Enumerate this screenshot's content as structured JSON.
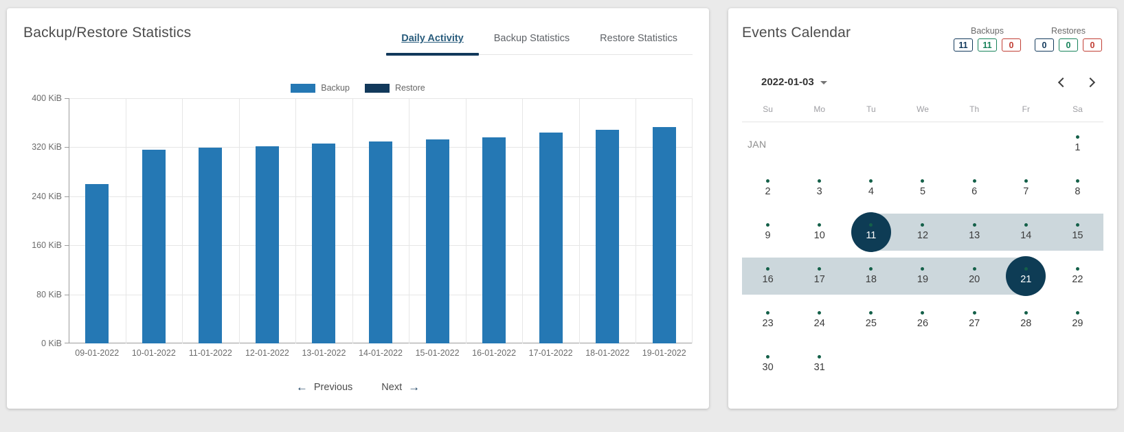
{
  "left_card": {
    "title": "Backup/Restore Statistics",
    "tabs": [
      {
        "label": "Daily Activity",
        "active": true
      },
      {
        "label": "Backup Statistics",
        "active": false
      },
      {
        "label": "Restore Statistics",
        "active": false
      }
    ],
    "legend": [
      {
        "label": "Backup",
        "color": "#2578b4"
      },
      {
        "label": "Restore",
        "color": "#12395b"
      }
    ],
    "pagination": {
      "prev_icon": "←",
      "previous_label": "Previous",
      "next_label": "Next",
      "next_icon": "→"
    }
  },
  "chart_data": {
    "type": "bar",
    "title": "Daily Activity",
    "categories": [
      "09-01-2022",
      "10-01-2022",
      "11-01-2022",
      "12-01-2022",
      "13-01-2022",
      "14-01-2022",
      "15-01-2022",
      "16-01-2022",
      "17-01-2022",
      "18-01-2022",
      "19-01-2022"
    ],
    "series": [
      {
        "name": "Backup",
        "color": "#2578b4",
        "values": [
          260,
          316,
          319,
          322,
          326,
          329,
          333,
          336,
          344,
          349,
          353
        ]
      },
      {
        "name": "Restore",
        "color": "#12395b",
        "values": [
          0,
          0,
          0,
          0,
          0,
          0,
          0,
          0,
          0,
          0,
          0
        ]
      }
    ],
    "unit": "KiB",
    "ylim": [
      0,
      400
    ],
    "ytick_step": 80,
    "yticks_top_to_bottom": [
      "400 KiB",
      "320 KiB",
      "240 KiB",
      "160 KiB",
      "80 KiB",
      "0 KiB"
    ],
    "grid": true,
    "legend_position": "top-center"
  },
  "right_card": {
    "title": "Events Calendar",
    "counters": [
      {
        "label": "Backups",
        "badges": [
          {
            "value": "11",
            "color": "#12395b"
          },
          {
            "value": "11",
            "color": "#17825a"
          },
          {
            "value": "0",
            "color": "#c03d33"
          }
        ]
      },
      {
        "label": "Restores",
        "badges": [
          {
            "value": "0",
            "color": "#12395b"
          },
          {
            "value": "0",
            "color": "#17825a"
          },
          {
            "value": "0",
            "color": "#c03d33"
          }
        ]
      }
    ],
    "month_selector": {
      "value": "2022-01-03"
    },
    "weekdays": [
      "Su",
      "Mo",
      "Tu",
      "We",
      "Th",
      "Fr",
      "Sa"
    ],
    "calendar": {
      "month_label": "JAN",
      "selected_days": [
        11,
        21
      ],
      "range": {
        "start_day": 11,
        "end_day": 21
      },
      "weeks": [
        {
          "show_month_label": true,
          "days": [
            {
              "col": 6,
              "day": 1,
              "dot": true
            }
          ]
        },
        {
          "days": [
            {
              "col": 0,
              "day": 2,
              "dot": true
            },
            {
              "col": 1,
              "day": 3,
              "dot": true
            },
            {
              "col": 2,
              "day": 4,
              "dot": true
            },
            {
              "col": 3,
              "day": 5,
              "dot": true
            },
            {
              "col": 4,
              "day": 6,
              "dot": true
            },
            {
              "col": 5,
              "day": 7,
              "dot": true
            },
            {
              "col": 6,
              "day": 8,
              "dot": true
            }
          ]
        },
        {
          "band": {
            "from_col": 2.5,
            "to_col": 7
          },
          "days": [
            {
              "col": 0,
              "day": 9,
              "dot": true
            },
            {
              "col": 1,
              "day": 10,
              "dot": true
            },
            {
              "col": 2,
              "day": 11,
              "dot": true,
              "selected": true
            },
            {
              "col": 3,
              "day": 12,
              "dot": true
            },
            {
              "col": 4,
              "day": 13,
              "dot": true
            },
            {
              "col": 5,
              "day": 14,
              "dot": true
            },
            {
              "col": 6,
              "day": 15,
              "dot": true
            }
          ]
        },
        {
          "band": {
            "from_col": 0,
            "to_col": 5.5
          },
          "days": [
            {
              "col": 0,
              "day": 16,
              "dot": true
            },
            {
              "col": 1,
              "day": 17,
              "dot": true
            },
            {
              "col": 2,
              "day": 18,
              "dot": true
            },
            {
              "col": 3,
              "day": 19,
              "dot": true
            },
            {
              "col": 4,
              "day": 20,
              "dot": true
            },
            {
              "col": 5,
              "day": 21,
              "dot": true,
              "selected": true
            },
            {
              "col": 6,
              "day": 22,
              "dot": true
            }
          ]
        },
        {
          "days": [
            {
              "col": 0,
              "day": 23,
              "dot": true
            },
            {
              "col": 1,
              "day": 24,
              "dot": true
            },
            {
              "col": 2,
              "day": 25,
              "dot": true
            },
            {
              "col": 3,
              "day": 26,
              "dot": true
            },
            {
              "col": 4,
              "day": 27,
              "dot": true
            },
            {
              "col": 5,
              "day": 28,
              "dot": true
            },
            {
              "col": 6,
              "day": 29,
              "dot": true
            }
          ]
        },
        {
          "days": [
            {
              "col": 0,
              "day": 30,
              "dot": true
            },
            {
              "col": 1,
              "day": 31,
              "dot": true
            }
          ]
        }
      ]
    },
    "colors": {
      "selected_circle": "#0e3c55",
      "event_dot": "#146049",
      "range_band": "#ccd7dc"
    }
  }
}
